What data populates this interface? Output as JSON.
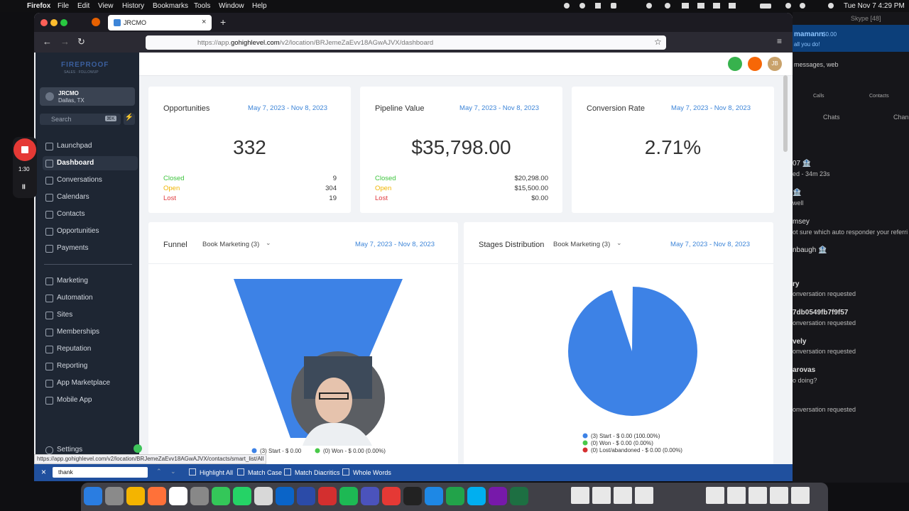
{
  "menu_bar": {
    "app": "Firefox",
    "items": [
      "File",
      "Edit",
      "View",
      "History",
      "Bookmarks",
      "Tools",
      "Window",
      "Help"
    ],
    "clock": "Tue Nov 7  4:29 PM"
  },
  "recorder": {
    "time": "1:30"
  },
  "browser": {
    "tab": "JRCMO",
    "url": {
      "scheme": "https://app.",
      "domain": "gohighlevel.com",
      "path": "/v2/location/BRJemeZaEvv18AGwAJVX/dashboard"
    },
    "status_url": "https://app.gohighlevel.com/v2/location/BRJemeZaEvv18AGwAJVX/contacts/smart_list/All"
  },
  "sidebar": {
    "logo": "FIREPROOF",
    "logo_sub": "SALES · FOLLOWUP",
    "account": {
      "name": "JRCMO",
      "location": "Dallas, TX"
    },
    "search": "Search",
    "shortcut": "⌘K",
    "nav_top": [
      "Launchpad",
      "Dashboard",
      "Conversations",
      "Calendars",
      "Contacts",
      "Opportunities",
      "Payments"
    ],
    "nav_bottom": [
      "Marketing",
      "Automation",
      "Sites",
      "Memberships",
      "Reputation",
      "Reporting",
      "App Marketplace",
      "Mobile App"
    ],
    "settings": "Settings"
  },
  "header": {
    "avatar": "JB"
  },
  "cards": [
    {
      "title": "Opportunities",
      "date": "May 7, 2023 - Nov 8, 2023",
      "value": "332",
      "rows": [
        {
          "label": "Closed",
          "value": "9"
        },
        {
          "label": "Open",
          "value": "304"
        },
        {
          "label": "Lost",
          "value": "19"
        }
      ]
    },
    {
      "title": "Pipeline Value",
      "date": "May 7, 2023 - Nov 8, 2023",
      "value": "$35,798.00",
      "rows": [
        {
          "label": "Closed",
          "value": "$20,298.00"
        },
        {
          "label": "Open",
          "value": "$15,500.00"
        },
        {
          "label": "Lost",
          "value": "$0.00"
        }
      ]
    },
    {
      "title": "Conversion Rate",
      "date": "May 7, 2023 - Nov 8, 2023",
      "value": "2.71%",
      "rows": []
    }
  ],
  "funnel": {
    "title": "Funnel",
    "pipeline": "Book Marketing (3)",
    "date": "May 7, 2023 - Nov 8, 2023",
    "legend": [
      "(3) Start - $ 0.00",
      "(0) Won - $ 0.00 (0.00%)"
    ]
  },
  "stages": {
    "title": "Stages Distribution",
    "pipeline": "Book Marketing (3)",
    "date": "May 7, 2023 - Nov 8, 2023",
    "legend": [
      "(3) Start - $ 0.00 (100.00%)",
      "(0) Won - $ 0.00 (0.00%)",
      "(0) Lost/abandoned - $ 0.00 (0.00%)"
    ]
  },
  "find_bar": {
    "query": "thank",
    "options": [
      "Highlight All",
      "Match Case",
      "Match Diacritics",
      "Whole Words"
    ]
  },
  "skype": {
    "title": "Skype [48]",
    "user": "mamann",
    "balance": "$0.00",
    "tagline": "all you do!",
    "search": "messages, web",
    "tabs": [
      "Calls",
      "Contacts"
    ],
    "sections": [
      "Chats",
      "Chan"
    ],
    "items": [
      {
        "name": "07 🏦",
        "text": "ed - 34m 23s"
      },
      {
        "name": "🏦",
        "text": "well"
      },
      {
        "name": "msey",
        "text": "ot sure which auto responder your referri"
      },
      {
        "name": "nbaugh 🏦",
        "text": ""
      },
      {
        "name": "ry",
        "text": "onversation requested"
      },
      {
        "name": "7db0549fb7f9f57",
        "text": "onversation requested"
      },
      {
        "name": "vely",
        "text": "onversation requested"
      },
      {
        "name": "arovas",
        "text": "o doing?"
      },
      {
        "name": "",
        "text": "onversation requested"
      }
    ]
  }
}
